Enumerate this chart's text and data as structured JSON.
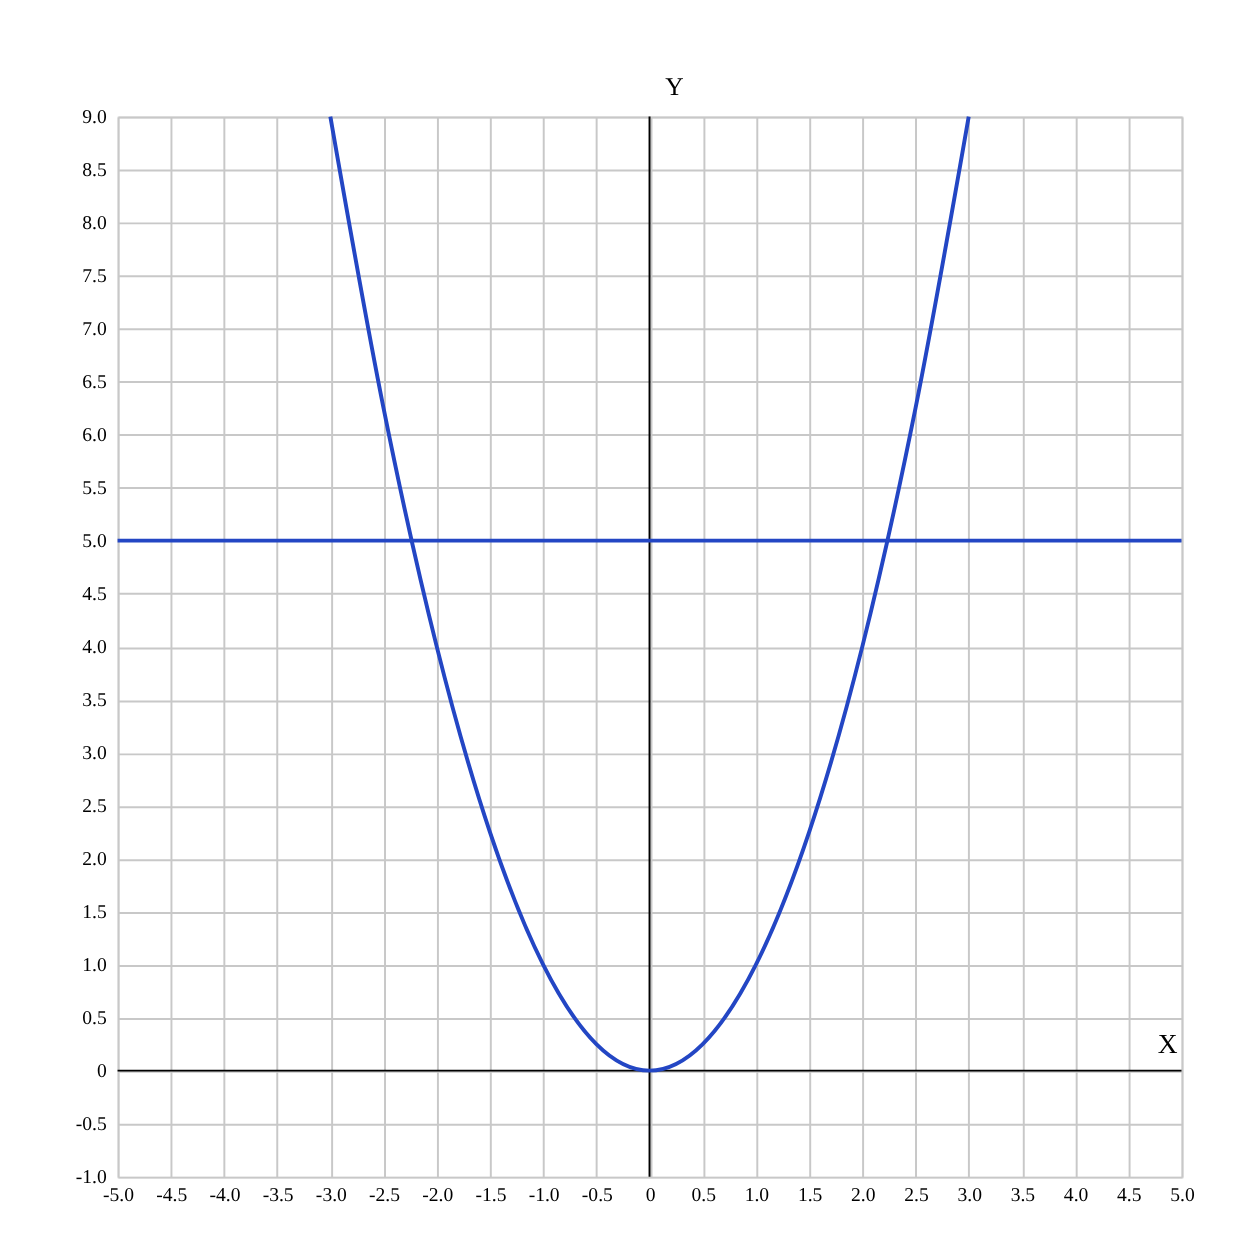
{
  "chart_data": {
    "type": "line",
    "xlabel": "X",
    "ylabel": "Y",
    "x": [
      -3,
      -2.5,
      -2,
      -1.5,
      -1,
      -0.5,
      0,
      0.5,
      1,
      1.5,
      2,
      2.5,
      3
    ],
    "series": [
      {
        "color": "#2346c4",
        "values": [
          9,
          6.25,
          4,
          2.25,
          1,
          0.25,
          0,
          0.25,
          1,
          2.25,
          4,
          6.25,
          9
        ]
      }
    ],
    "ref_lines": [
      {
        "axis": "y",
        "value": 5,
        "color": "#2346c4"
      }
    ],
    "xlim": [
      -5,
      5
    ],
    "xticks": [
      {
        "value": -5,
        "label": "-5.0"
      },
      -4.5,
      {
        "value": -4,
        "label": "-4.0"
      },
      -3.5,
      {
        "value": -3,
        "label": "-3.0"
      },
      -2.5,
      {
        "value": -2,
        "label": "-2.0"
      },
      -1.5,
      {
        "value": -1,
        "label": "-1.0"
      },
      -0.5,
      0,
      0.5,
      {
        "value": 1,
        "label": "1.0"
      },
      1.5,
      {
        "value": 2,
        "label": "2.0"
      },
      2.5,
      {
        "value": 3,
        "label": "3.0"
      },
      3.5,
      {
        "value": 4,
        "label": "4.0"
      },
      4.5,
      {
        "value": 5,
        "label": "5.0"
      }
    ],
    "ylim": [
      -1,
      9
    ],
    "yticks": [
      {
        "value": -1,
        "label": "-1.0"
      },
      -0.5,
      0,
      0.5,
      {
        "value": 1,
        "label": "1.0"
      },
      1.5,
      {
        "value": 2,
        "label": "2.0"
      },
      2.5,
      {
        "value": 3,
        "label": "3.0"
      },
      3.5,
      {
        "value": 4,
        "label": "4.0"
      },
      4.5,
      {
        "value": 5,
        "label": "5.0"
      },
      5.5,
      {
        "value": 6,
        "label": "6.0"
      },
      6.5,
      {
        "value": 7,
        "label": "7.0"
      },
      7.5,
      {
        "value": 8,
        "label": "8.0"
      },
      8.5,
      {
        "value": 9,
        "label": "9.0"
      }
    ],
    "grid": true,
    "line_style": "solid",
    "marker": "none"
  }
}
